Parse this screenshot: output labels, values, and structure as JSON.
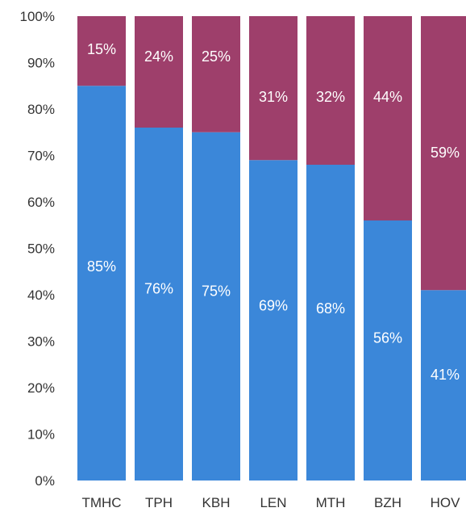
{
  "chart_data": {
    "type": "bar",
    "stacked": true,
    "categories": [
      "TMHC",
      "TPH",
      "KBH",
      "LEN",
      "MTH",
      "BZH",
      "HOV"
    ],
    "series": [
      {
        "color": "#3b87d9",
        "values": [
          85,
          76,
          75,
          69,
          68,
          56,
          41
        ],
        "labels": [
          "85%",
          "76%",
          "75%",
          "69%",
          "68%",
          "56%",
          "41%"
        ]
      },
      {
        "color": "#9e3f6b",
        "values": [
          15,
          24,
          25,
          31,
          32,
          44,
          59
        ],
        "labels": [
          "15%",
          "24%",
          "25%",
          "31%",
          "32%",
          "44%",
          "59%"
        ]
      }
    ],
    "yticks": [
      "0%",
      "10%",
      "20%",
      "30%",
      "40%",
      "50%",
      "60%",
      "70%",
      "80%",
      "90%",
      "100%"
    ],
    "ylim": [
      0,
      100
    ],
    "title": "",
    "xlabel": "",
    "ylabel": "",
    "grid": false,
    "legend": "none"
  }
}
